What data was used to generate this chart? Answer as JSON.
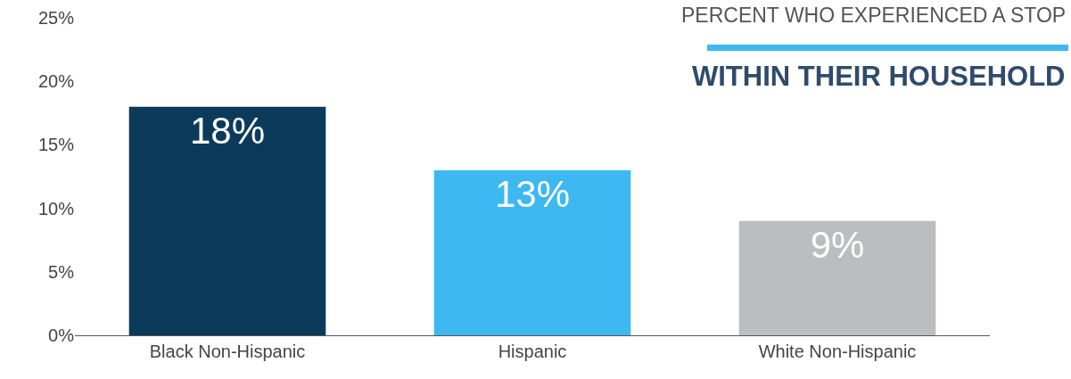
{
  "chart_data": {
    "type": "bar",
    "title": "PERCENT WHO EXPERIENCED A STOP",
    "subtitle": "WITHIN THEIR HOUSEHOLD",
    "categories": [
      "Black Non-Hispanic",
      "Hispanic",
      "White Non-Hispanic"
    ],
    "values": [
      18,
      13,
      9
    ],
    "colors": [
      "#0c3a5a",
      "#3db8f0",
      "#bcbdc0"
    ],
    "ylim": [
      0,
      25
    ],
    "yticks": [
      {
        "value": 0,
        "label": "0%"
      },
      {
        "value": 5,
        "label": "5%"
      },
      {
        "value": 10,
        "label": "10%"
      },
      {
        "value": 15,
        "label": "15%"
      },
      {
        "value": 20,
        "label": "20%"
      },
      {
        "value": 25,
        "label": "25%"
      }
    ],
    "value_labels": [
      "18%",
      "13%",
      "9%"
    ],
    "grid": false
  }
}
